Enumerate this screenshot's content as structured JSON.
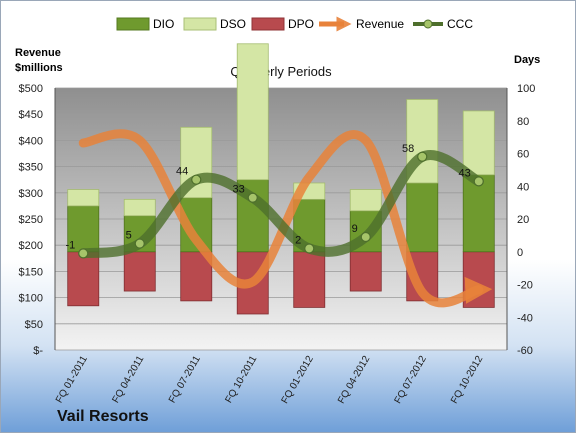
{
  "chart_data": {
    "type": "bar",
    "company": "Vail Resorts",
    "title": "Quarterly Periods",
    "y_left_label": [
      "Revenue",
      "$millions"
    ],
    "y_right_label": "Days",
    "y_left_ticks": [
      "$-",
      "$50",
      "$100",
      "$150",
      "$200",
      "$250",
      "$300",
      "$350",
      "$400",
      "$450",
      "$500"
    ],
    "y_right_ticks": [
      "-60",
      "-40",
      "-20",
      "0",
      "20",
      "40",
      "60",
      "80",
      "100"
    ],
    "ylim_left": [
      0,
      500
    ],
    "ylim_right": [
      -60,
      100
    ],
    "grid": true,
    "legend_position": "top",
    "categories": [
      "FQ 01-2011",
      "FQ 04-2011",
      "FQ 07-2011",
      "FQ 10-2011",
      "FQ 01-2012",
      "FQ 04-2012",
      "FQ 07-2012",
      "FQ 10-2012"
    ],
    "series": [
      {
        "name": "DIO",
        "type": "stacked-bar",
        "axis": "right",
        "color": "#6f9a2e",
        "values": [
          28,
          22,
          33,
          44,
          32,
          25,
          42,
          47
        ]
      },
      {
        "name": "DSO",
        "type": "stacked-bar",
        "axis": "right",
        "color": "#d4e6a5",
        "values": [
          10,
          10,
          43,
          83,
          10,
          13,
          51,
          39
        ]
      },
      {
        "name": "DPO",
        "type": "stacked-bar-negative",
        "axis": "right",
        "color": "#b84a4e",
        "values": [
          -33,
          -24,
          -30,
          -38,
          -34,
          -24,
          -30,
          -34
        ]
      },
      {
        "name": "Revenue",
        "type": "line",
        "axis": "left",
        "color": "#e8823a",
        "values": [
          395,
          400,
          210,
          130,
          330,
          400,
          110,
          115
        ]
      },
      {
        "name": "CCC",
        "type": "line",
        "axis": "right",
        "color": "#4e6f2c",
        "values": [
          -1,
          5,
          44,
          33,
          2,
          9,
          58,
          43
        ],
        "labels": [
          "-1",
          "5",
          "44",
          "33",
          "2",
          "9",
          "58",
          "43"
        ]
      }
    ]
  }
}
